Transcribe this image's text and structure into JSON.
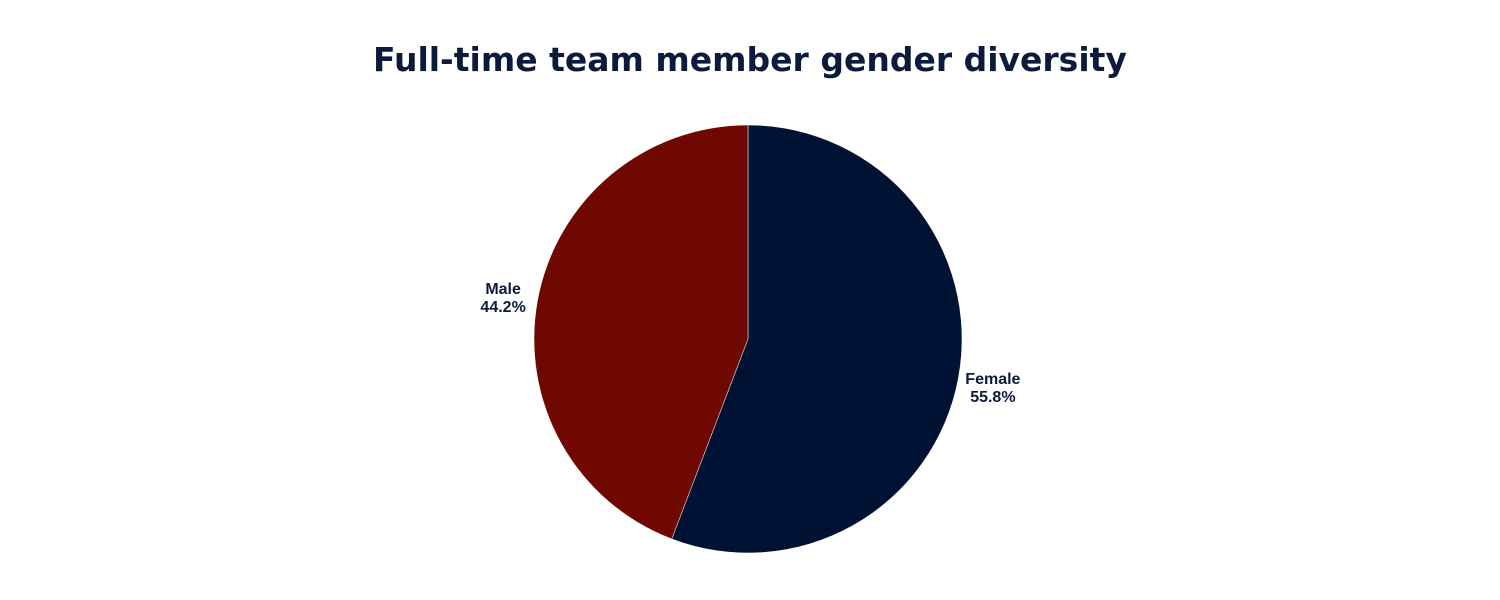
{
  "chart_data": {
    "type": "pie",
    "title": "Full-time team member gender diversity",
    "slices": [
      {
        "label": "Female",
        "value": 55.8,
        "display": "55.8%",
        "color": "#001233"
      },
      {
        "label": "Male",
        "value": 44.2,
        "display": "44.2%",
        "color": "#6f0801"
      }
    ],
    "start_angle": "top",
    "direction": "clockwise",
    "legend": "none",
    "label_color": "#0c1a3c"
  }
}
